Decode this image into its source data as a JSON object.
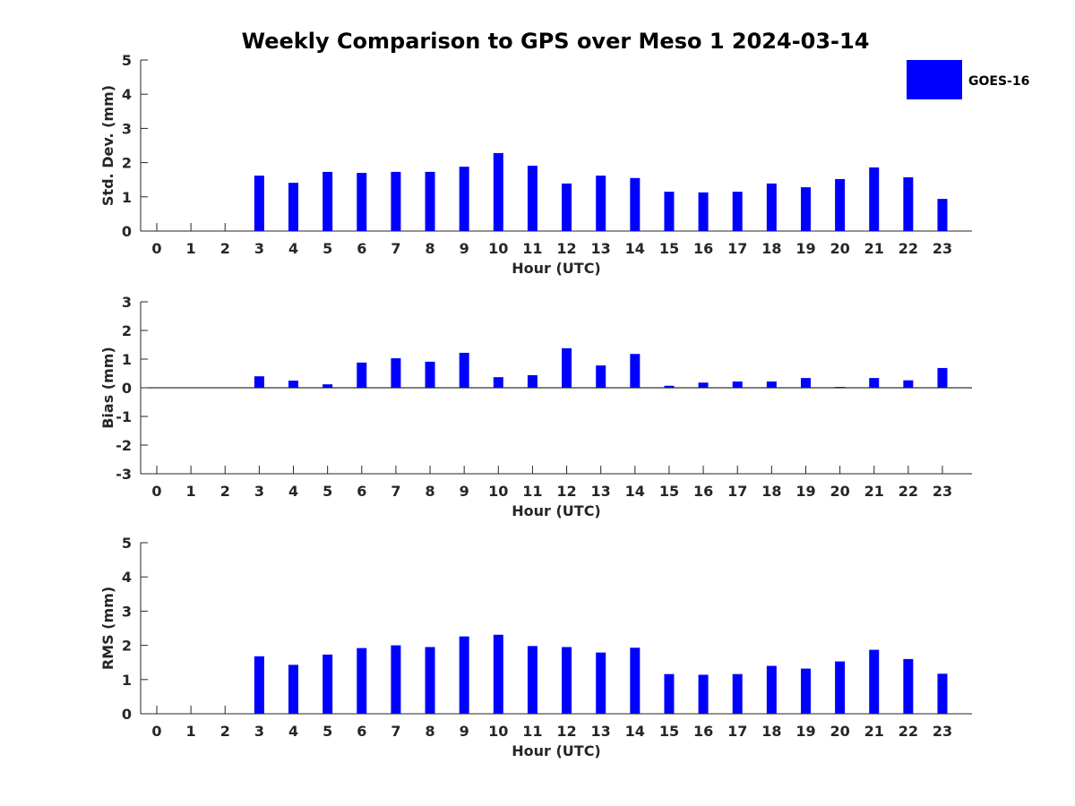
{
  "title": "Weekly Comparison to GPS over Meso 1 2024-03-14",
  "legend": {
    "label": "GOES-16",
    "color": "#0000ff"
  },
  "chart_data": [
    {
      "type": "bar",
      "name": "std",
      "ylabel": "Std. Dev. (mm)",
      "xlabel": "Hour (UTC)",
      "ylim": [
        0,
        5
      ],
      "yticks": [
        0,
        1,
        2,
        3,
        4,
        5
      ],
      "categories": [
        0,
        1,
        2,
        3,
        4,
        5,
        6,
        7,
        8,
        9,
        10,
        11,
        12,
        13,
        14,
        15,
        16,
        17,
        18,
        19,
        20,
        21,
        22,
        23
      ],
      "series": [
        {
          "name": "GOES-16",
          "color": "#0000ff",
          "values": [
            null,
            null,
            null,
            1.62,
            1.41,
            1.73,
            1.7,
            1.73,
            1.73,
            1.88,
            2.28,
            1.91,
            1.39,
            1.62,
            1.55,
            1.15,
            1.13,
            1.15,
            1.39,
            1.28,
            1.52,
            1.86,
            1.57,
            0.94
          ]
        }
      ]
    },
    {
      "type": "bar",
      "name": "bias",
      "ylabel": "Bias (mm)",
      "xlabel": "Hour (UTC)",
      "ylim": [
        -3,
        3
      ],
      "yticks": [
        -3,
        -2,
        -1,
        0,
        1,
        2,
        3
      ],
      "categories": [
        0,
        1,
        2,
        3,
        4,
        5,
        6,
        7,
        8,
        9,
        10,
        11,
        12,
        13,
        14,
        15,
        16,
        17,
        18,
        19,
        20,
        21,
        22,
        23
      ],
      "series": [
        {
          "name": "GOES-16",
          "color": "#0000ff",
          "values": [
            null,
            null,
            null,
            0.4,
            0.25,
            0.12,
            0.88,
            1.03,
            0.91,
            1.22,
            0.37,
            0.44,
            1.38,
            0.78,
            1.18,
            0.07,
            0.18,
            0.22,
            0.22,
            0.34,
            0.03,
            0.34,
            0.26,
            0.69
          ]
        }
      ]
    },
    {
      "type": "bar",
      "name": "rms",
      "ylabel": "RMS (mm)",
      "xlabel": "Hour (UTC)",
      "ylim": [
        0,
        5
      ],
      "yticks": [
        0,
        1,
        2,
        3,
        4,
        5
      ],
      "categories": [
        0,
        1,
        2,
        3,
        4,
        5,
        6,
        7,
        8,
        9,
        10,
        11,
        12,
        13,
        14,
        15,
        16,
        17,
        18,
        19,
        20,
        21,
        22,
        23
      ],
      "series": [
        {
          "name": "GOES-16",
          "color": "#0000ff",
          "values": [
            null,
            null,
            null,
            1.68,
            1.43,
            1.73,
            1.92,
            2.0,
            1.95,
            2.26,
            2.31,
            1.98,
            1.95,
            1.79,
            1.93,
            1.16,
            1.14,
            1.16,
            1.4,
            1.32,
            1.53,
            1.87,
            1.6,
            1.17
          ]
        }
      ]
    }
  ]
}
